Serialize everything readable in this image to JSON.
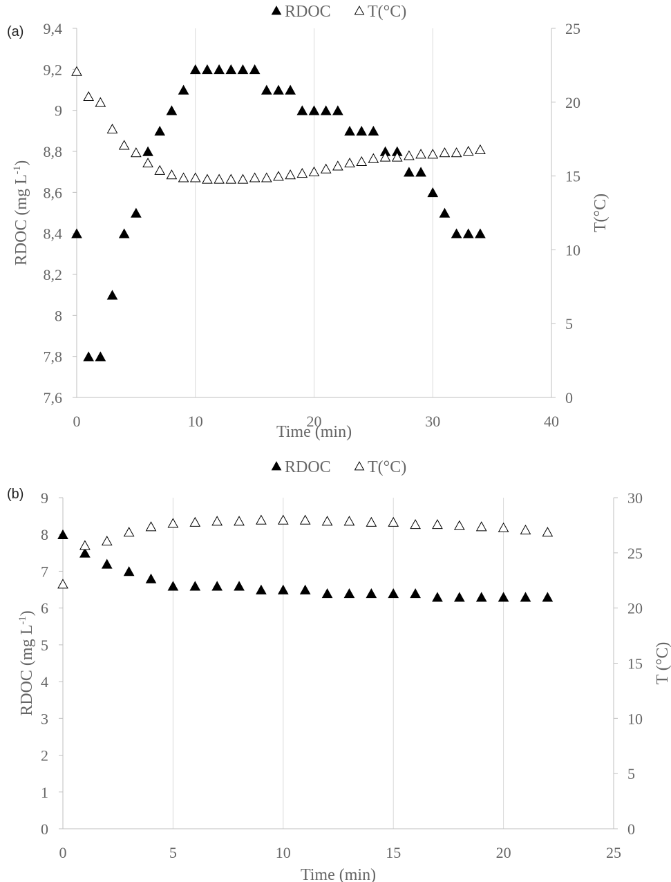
{
  "chart_data": [
    {
      "type": "scatter",
      "panel_label": "(a)",
      "xlabel": "Time (min)",
      "ylabel": "RDOC (mg L",
      "ylabel_sup": "-1",
      "ylabel_close": ")",
      "y2label": "T(°C)",
      "xlim": [
        0,
        40
      ],
      "ylim": [
        7.6,
        9.4
      ],
      "y2lim": [
        0,
        25
      ],
      "grid": "vertical",
      "legend_position": "top",
      "x_ticks": [
        "0",
        "10",
        "20",
        "30",
        "40"
      ],
      "y_ticks": [
        "7,6",
        "7,8",
        "8",
        "8,2",
        "8,4",
        "8,6",
        "8,8",
        "9",
        "9,2",
        "9,4"
      ],
      "y2_ticks": [
        "0",
        "5",
        "10",
        "15",
        "20",
        "25"
      ],
      "series": [
        {
          "name": "RDOC",
          "marker": "filled-triangle",
          "axis": "left",
          "color": "#000000",
          "x": [
            0,
            1,
            2,
            3,
            4,
            5,
            6,
            7,
            8,
            9,
            10,
            11,
            12,
            13,
            14,
            15,
            16,
            17,
            18,
            19,
            20,
            21,
            22,
            23,
            24,
            25,
            26,
            27,
            28,
            29,
            30,
            31,
            32,
            33,
            34
          ],
          "y": [
            8.4,
            7.8,
            7.8,
            8.1,
            8.4,
            8.5,
            8.8,
            8.9,
            9.0,
            9.1,
            9.2,
            9.2,
            9.2,
            9.2,
            9.2,
            9.2,
            9.1,
            9.1,
            9.1,
            9.0,
            9.0,
            9.0,
            9.0,
            8.9,
            8.9,
            8.9,
            8.8,
            8.8,
            8.7,
            8.7,
            8.6,
            8.5,
            8.4,
            8.4,
            8.4
          ]
        },
        {
          "name": "T(°C)",
          "marker": "open-triangle",
          "axis": "right",
          "color": "#000000",
          "x": [
            0,
            1,
            2,
            3,
            4,
            5,
            6,
            7,
            8,
            9,
            10,
            11,
            12,
            13,
            14,
            15,
            16,
            17,
            18,
            19,
            20,
            21,
            22,
            23,
            24,
            25,
            26,
            27,
            28,
            29,
            30,
            31,
            32,
            33,
            34
          ],
          "y": [
            22.1,
            20.4,
            20.0,
            18.2,
            17.1,
            16.6,
            15.9,
            15.4,
            15.1,
            14.9,
            14.9,
            14.8,
            14.8,
            14.8,
            14.8,
            14.9,
            14.9,
            15.0,
            15.1,
            15.2,
            15.3,
            15.5,
            15.7,
            15.9,
            16.0,
            16.2,
            16.3,
            16.3,
            16.4,
            16.5,
            16.5,
            16.6,
            16.6,
            16.7,
            16.8
          ]
        }
      ]
    },
    {
      "type": "scatter",
      "panel_label": "(b)",
      "xlabel": "Time (min)",
      "ylabel": "RDOC (mg L",
      "ylabel_sup": "-1",
      "ylabel_close": ")",
      "y2label": "T (°C)",
      "xlim": [
        0,
        25
      ],
      "ylim": [
        0,
        9
      ],
      "y2lim": [
        0,
        30
      ],
      "grid": "vertical",
      "legend_position": "top",
      "x_ticks": [
        "0",
        "5",
        "10",
        "15",
        "20",
        "25"
      ],
      "y_ticks": [
        "0",
        "1",
        "2",
        "3",
        "4",
        "5",
        "6",
        "7",
        "8",
        "9"
      ],
      "y2_ticks": [
        "0",
        "5",
        "10",
        "15",
        "20",
        "25",
        "30"
      ],
      "series": [
        {
          "name": "RDOC",
          "marker": "filled-triangle",
          "axis": "left",
          "color": "#000000",
          "x": [
            0,
            1,
            2,
            3,
            4,
            5,
            6,
            7,
            8,
            9,
            10,
            11,
            12,
            13,
            14,
            15,
            16,
            17,
            18,
            19,
            20,
            21,
            22
          ],
          "y": [
            8.0,
            7.5,
            7.2,
            7.0,
            6.8,
            6.6,
            6.6,
            6.6,
            6.6,
            6.5,
            6.5,
            6.5,
            6.4,
            6.4,
            6.4,
            6.4,
            6.4,
            6.3,
            6.3,
            6.3,
            6.3,
            6.3,
            6.3
          ]
        },
        {
          "name": "T(°C)",
          "marker": "open-triangle",
          "axis": "right",
          "color": "#000000",
          "x": [
            0,
            1,
            2,
            3,
            4,
            5,
            6,
            7,
            8,
            9,
            10,
            11,
            12,
            13,
            14,
            15,
            16,
            17,
            18,
            19,
            20,
            21,
            22
          ],
          "y": [
            22.2,
            25.7,
            26.1,
            26.9,
            27.4,
            27.7,
            27.8,
            27.9,
            27.9,
            28.0,
            28.0,
            28.0,
            27.9,
            27.9,
            27.8,
            27.8,
            27.6,
            27.6,
            27.5,
            27.4,
            27.3,
            27.1,
            26.9
          ]
        }
      ]
    }
  ]
}
